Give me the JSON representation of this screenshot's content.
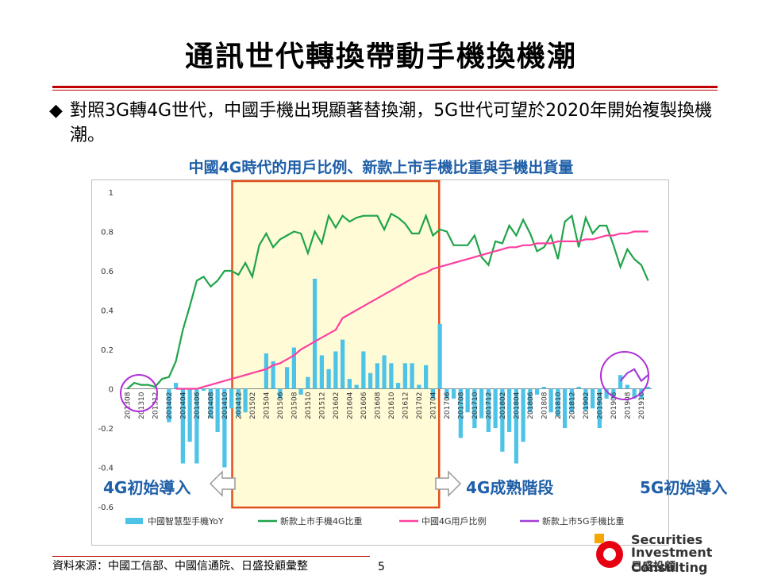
{
  "slide": {
    "title": "通訊世代轉換帶動手機換機潮",
    "bullet_mark": "◆",
    "bullet_text": "對照3G轉4G世代，中國手機出現顯著替換潮，5G世代可望於2020年開始複製換機潮。",
    "source": "資料來源：中國工信部、中國信通院、日盛投顧彙整",
    "page_number": "5"
  },
  "annotations": {
    "start_4g": "4G初始導入",
    "mature_4g": "4G成熟階段",
    "start_5g": "5G初始導入"
  },
  "logo": {
    "line1": "Securities",
    "line2": "Investment Consulting",
    "line3": "日盛投顧"
  },
  "colors": {
    "yoy_bar": "#4dc3e8",
    "green_line": "#1fa44a",
    "pink_line": "#ff3fa0",
    "purple_line": "#a23fd6",
    "highlight_fill": "#fffbd6",
    "highlight_border": "#e0501a",
    "annotation_text": "#1f5fa8"
  },
  "chart_data": {
    "type": "bar",
    "title": "中國4G時代的用戶比例、新款上市手機比重與手機出貨量",
    "ylim": [
      -0.6,
      1
    ],
    "yticks": [
      "1",
      "0.8",
      "0.6",
      "0.4",
      "0.2",
      "0",
      "-0.2",
      "-0.4",
      "-0.6"
    ],
    "ytick_values": [
      1,
      0.8,
      0.6,
      0.4,
      0.2,
      0,
      -0.2,
      -0.4,
      -0.6
    ],
    "x_tick_labels": [
      "201308",
      "201310",
      "201312",
      "201402",
      "201404",
      "201406",
      "201408",
      "201410",
      "201412",
      "201502",
      "201504",
      "201506",
      "201508",
      "201510",
      "201512",
      "201602",
      "201604",
      "201606",
      "201608",
      "201610",
      "201612",
      "201702",
      "201704",
      "201706",
      "201708",
      "201710",
      "201712",
      "201802",
      "201804",
      "201806",
      "201808",
      "201810",
      "201812",
      "201902",
      "201904",
      "201906",
      "201908",
      "201910"
    ],
    "months": 76,
    "highlight_range_months": [
      16,
      45
    ],
    "series": [
      {
        "name": "中國智慧型手機YoY",
        "kind": "bar",
        "values": [
          0,
          0,
          0,
          0,
          0,
          0,
          -0.17,
          0.03,
          -0.38,
          -0.27,
          -0.38,
          -0.01,
          -0.15,
          -0.22,
          -0.4,
          -0.1,
          -0.14,
          -0.12,
          0,
          0,
          0.18,
          0.14,
          -0.05,
          0.11,
          0.21,
          -0.03,
          0.06,
          0.56,
          0.17,
          0.1,
          0.19,
          0.25,
          0.05,
          0.02,
          0.19,
          0.08,
          0.13,
          0.17,
          0.13,
          0.03,
          0.13,
          0.13,
          0.02,
          0.12,
          -0.05,
          0.33,
          -0.05,
          -0.05,
          -0.25,
          -0.12,
          -0.2,
          -0.15,
          -0.22,
          -0.2,
          -0.32,
          -0.22,
          -0.38,
          -0.27,
          -0.12,
          -0.03,
          0.01,
          -0.12,
          -0.14,
          -0.2,
          -0.12,
          0.01,
          -0.11,
          -0.1,
          -0.2,
          -0.05,
          -0.05,
          0.07,
          0.02,
          -0.05,
          -0.05,
          0.01
        ]
      },
      {
        "name": "新款上市手機4G比重",
        "kind": "line",
        "start_month": 0,
        "values": [
          0,
          0.03,
          0.02,
          0.02,
          0.01,
          0.05,
          0.06,
          0.14,
          0.3,
          0.42,
          0.55,
          0.57,
          0.52,
          0.55,
          0.6,
          0.6,
          0.58,
          0.64,
          0.57,
          0.73,
          0.79,
          0.72,
          0.76,
          0.78,
          0.8,
          0.79,
          0.69,
          0.8,
          0.74,
          0.88,
          0.82,
          0.88,
          0.85,
          0.87,
          0.88,
          0.88,
          0.88,
          0.81,
          0.89,
          0.87,
          0.84,
          0.79,
          0.79,
          0.88,
          0.78,
          0.81,
          0.8,
          0.73,
          0.73,
          0.73,
          0.78,
          0.67,
          0.63,
          0.75,
          0.74,
          0.83,
          0.78,
          0.86,
          0.79,
          0.7,
          0.72,
          0.78,
          0.66,
          0.85,
          0.88,
          0.72,
          0.87,
          0.79,
          0.83,
          0.83,
          0.73,
          0.62,
          0.71,
          0.66,
          0.63,
          0.55
        ]
      },
      {
        "name": "中國4G用戶比例",
        "kind": "line",
        "start_month": 7,
        "values": [
          0,
          0,
          0,
          0,
          0.01,
          0.02,
          0.03,
          0.04,
          0.05,
          0.06,
          0.07,
          0.08,
          0.09,
          0.1,
          0.12,
          0.13,
          0.15,
          0.17,
          0.2,
          0.22,
          0.24,
          0.26,
          0.28,
          0.3,
          0.36,
          0.38,
          0.4,
          0.42,
          0.44,
          0.46,
          0.48,
          0.5,
          0.52,
          0.54,
          0.56,
          0.58,
          0.59,
          0.61,
          0.62,
          0.63,
          0.64,
          0.65,
          0.66,
          0.67,
          0.68,
          0.69,
          0.7,
          0.71,
          0.72,
          0.72,
          0.73,
          0.73,
          0.74,
          0.74,
          0.74,
          0.75,
          0.75,
          0.75,
          0.75,
          0.76,
          0.76,
          0.77,
          0.78,
          0.78,
          0.79,
          0.79,
          0.8,
          0.8,
          0.8
        ]
      },
      {
        "name": "新款上市5G手機比重",
        "kind": "line",
        "start_month": 71,
        "values": [
          0.04,
          0.08,
          0.1,
          0.04,
          0.07
        ]
      }
    ],
    "legend_position": "bottom"
  }
}
